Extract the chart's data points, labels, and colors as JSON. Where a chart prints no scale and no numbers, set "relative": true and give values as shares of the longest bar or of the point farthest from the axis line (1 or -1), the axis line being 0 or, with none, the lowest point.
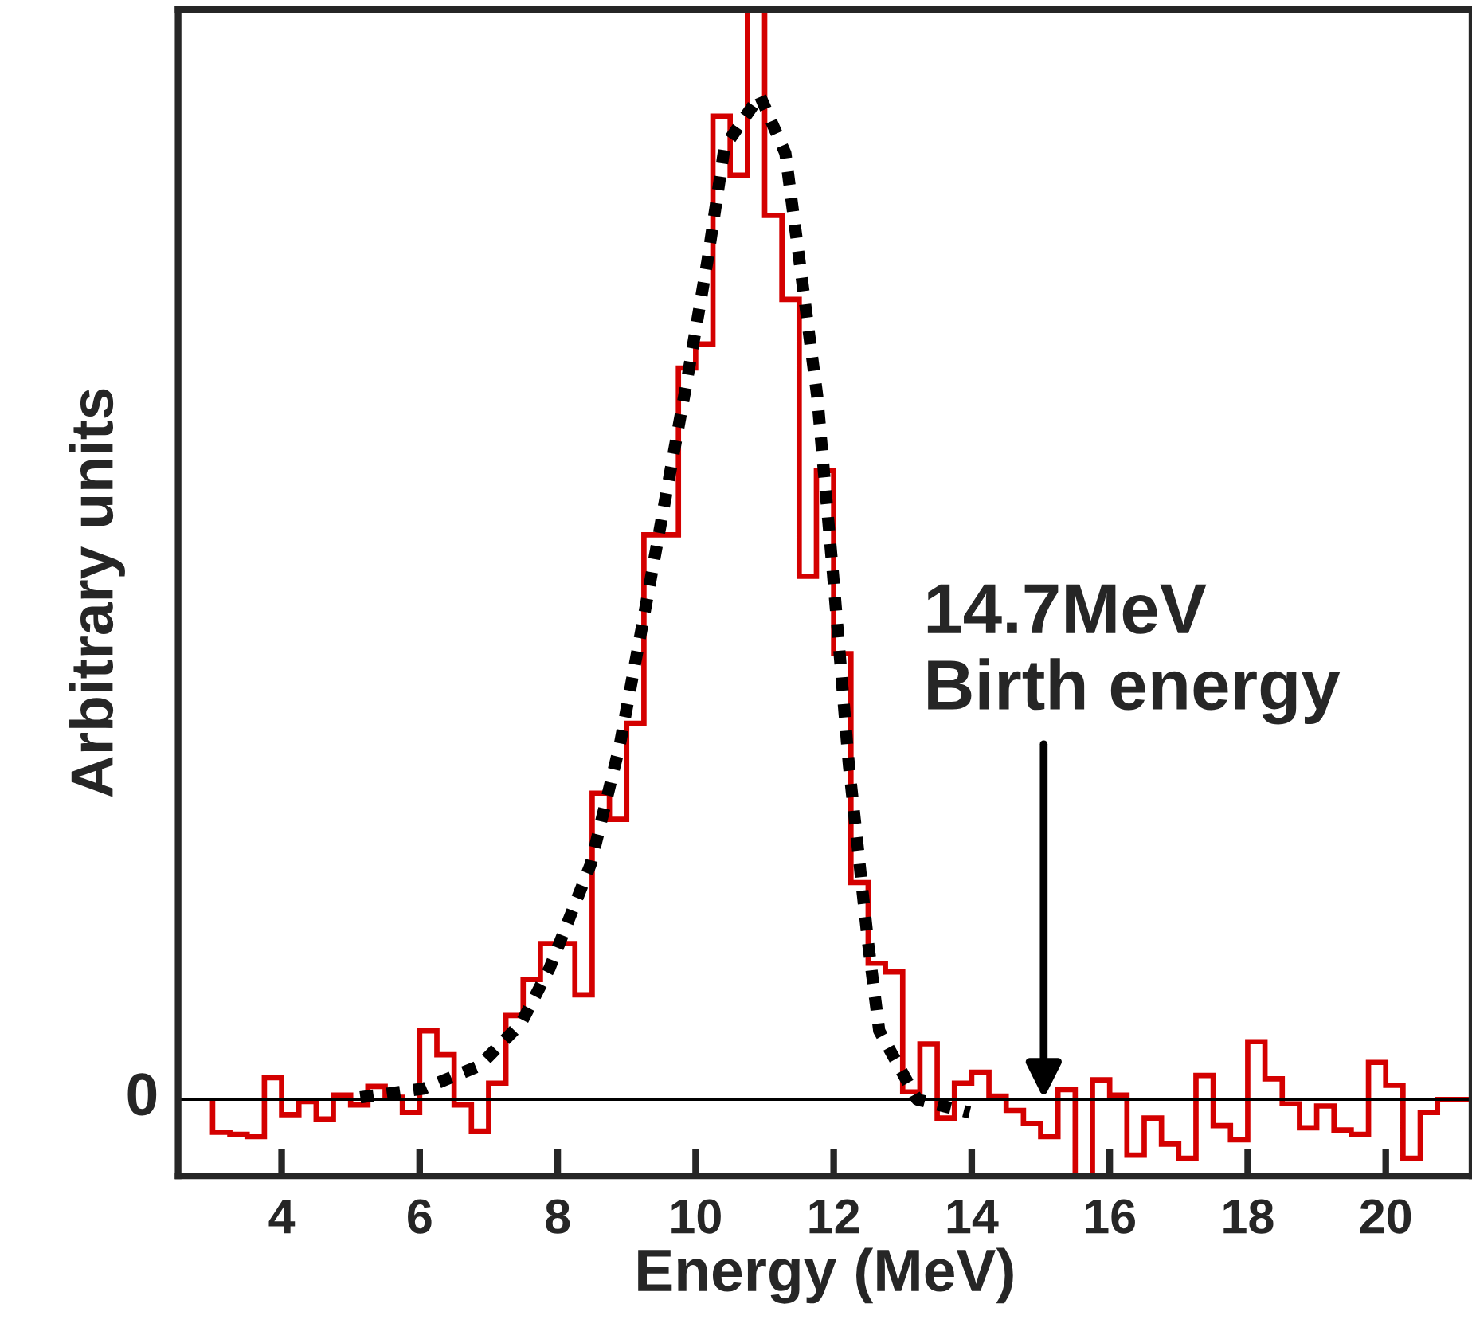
{
  "chart_data": {
    "type": "histogram",
    "relative": true,
    "xlabel": "Energy (MeV)",
    "ylabel": "Arbitrary units",
    "bins": [
      3.0,
      3.25,
      3.5,
      3.75,
      4.0,
      4.25,
      4.5,
      4.75,
      5.0,
      5.25,
      5.5,
      5.75,
      6.0,
      6.25,
      6.5,
      6.75,
      7.0,
      7.25,
      7.5,
      7.75,
      8.0,
      8.25,
      8.5,
      8.75,
      9.0,
      9.25,
      9.5,
      9.75,
      10.0,
      10.25,
      10.5,
      10.75,
      11.0,
      11.25,
      11.5,
      11.75,
      12.0,
      12.25,
      12.5,
      12.75,
      13.0,
      13.25,
      13.5,
      13.75,
      14.0,
      14.25,
      14.5,
      14.75,
      15.0,
      15.25,
      15.5,
      15.75,
      16.0,
      16.25,
      16.5,
      16.75,
      17.0,
      17.25,
      17.5,
      17.75,
      18.0,
      18.25,
      18.5,
      18.75,
      19.0,
      19.25,
      19.5,
      19.75,
      20.0,
      20.25,
      20.5,
      20.75,
      21.0,
      21.25
    ],
    "values": [
      -0.03,
      -0.032,
      -0.034,
      0.02,
      -0.014,
      -0.002,
      -0.018,
      0.004,
      -0.005,
      0.012,
      0.002,
      -0.012,
      0.063,
      0.041,
      -0.005,
      -0.029,
      0.015,
      0.077,
      0.11,
      0.143,
      0.143,
      0.096,
      0.281,
      0.257,
      0.345,
      0.518,
      0.518,
      0.671,
      0.693,
      0.902,
      0.848,
      1.0,
      0.811,
      0.734,
      0.48,
      0.577,
      0.409,
      0.199,
      0.125,
      0.117,
      0.007,
      0.051,
      -0.017,
      0.015,
      0.025,
      0.003,
      -0.01,
      -0.022,
      -0.034,
      0.009,
      -0.07,
      0.018,
      0.004,
      -0.051,
      -0.017,
      -0.041,
      -0.054,
      0.022,
      -0.024,
      -0.037,
      0.053,
      0.019,
      -0.004,
      -0.026,
      -0.006,
      -0.028,
      -0.032,
      0.034,
      0.013,
      -0.054,
      -0.012,
      0.0,
      0.0
    ],
    "color": "#d40000",
    "series": [
      {
        "type": "line",
        "color": "#000000",
        "line_style": "dotted",
        "x": [
          5.14,
          6.06,
          6.87,
          7.47,
          7.88,
          8.48,
          8.9,
          9.22,
          9.54,
          9.87,
          10.17,
          10.42,
          10.93,
          11.3,
          11.53,
          11.76,
          11.99,
          12.22,
          12.5,
          12.66,
          13.21,
          13.97
        ],
        "values": [
          0.002,
          0.01,
          0.031,
          0.07,
          0.12,
          0.216,
          0.325,
          0.433,
          0.544,
          0.658,
          0.769,
          0.874,
          0.921,
          0.868,
          0.757,
          0.646,
          0.482,
          0.307,
          0.143,
          0.063,
          0.0,
          -0.012
        ]
      }
    ],
    "xlim": [
      2.5,
      21.25
    ],
    "xticks": [
      4,
      6,
      8,
      10,
      12,
      14,
      16,
      18,
      20
    ],
    "ref_lines": [
      {
        "axis": "y",
        "value": 0,
        "label": "0",
        "color": "#000000"
      }
    ],
    "annotations": [
      "14.7MeV\nBirth energy"
    ],
    "grid": false,
    "legend": false
  }
}
